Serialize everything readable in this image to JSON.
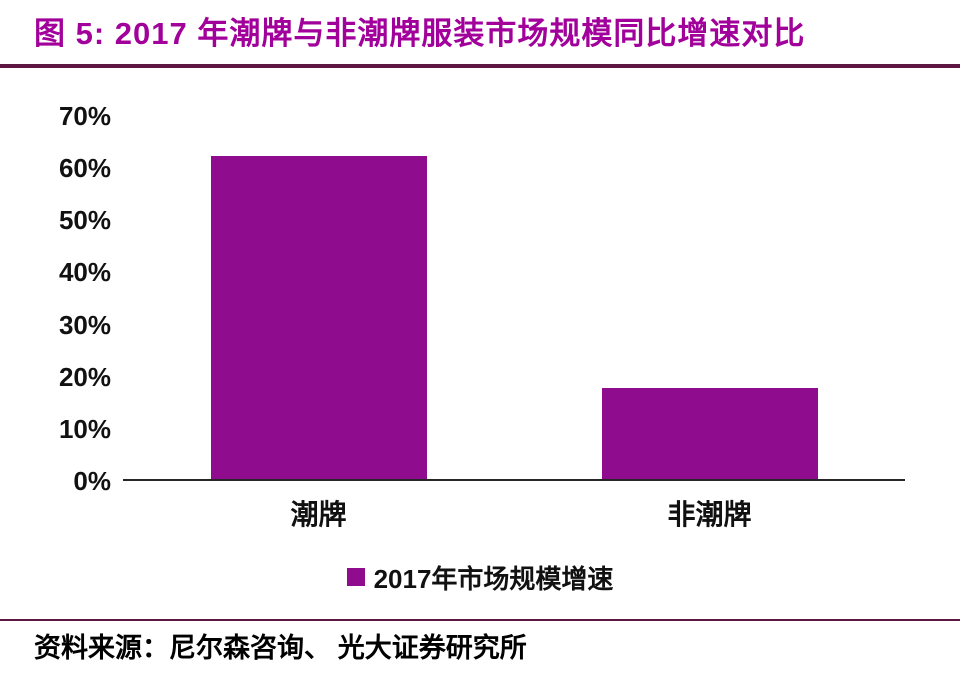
{
  "header": {
    "title": "图 5: 2017 年潮牌与非潮牌服装市场规模同比增速对比"
  },
  "legend": {
    "label": "2017年市场规模增速"
  },
  "footer": {
    "source": "资料来源：尼尔森咨询、 光大证券研究所"
  },
  "colors": {
    "title": "#A1009A",
    "bar": "#8F0C8F",
    "rule": "#5E1742",
    "axis": "#262626",
    "text": "#111111"
  },
  "chart_data": {
    "type": "bar",
    "title": "图 5: 2017 年潮牌与非潮牌服装市场规模同比增速对比",
    "categories": [
      "潮牌",
      "非潮牌"
    ],
    "series": [
      {
        "name": "2017年市场规模增速",
        "values": [
          62,
          17.5
        ]
      }
    ],
    "xlabel": "",
    "ylabel": "",
    "ylim": [
      0,
      70
    ],
    "ytick_step": 10,
    "yticks": [
      "70%",
      "60%",
      "50%",
      "40%",
      "30%",
      "20%",
      "10%",
      "0%"
    ],
    "grid": false,
    "legend_position": "bottom-center"
  }
}
